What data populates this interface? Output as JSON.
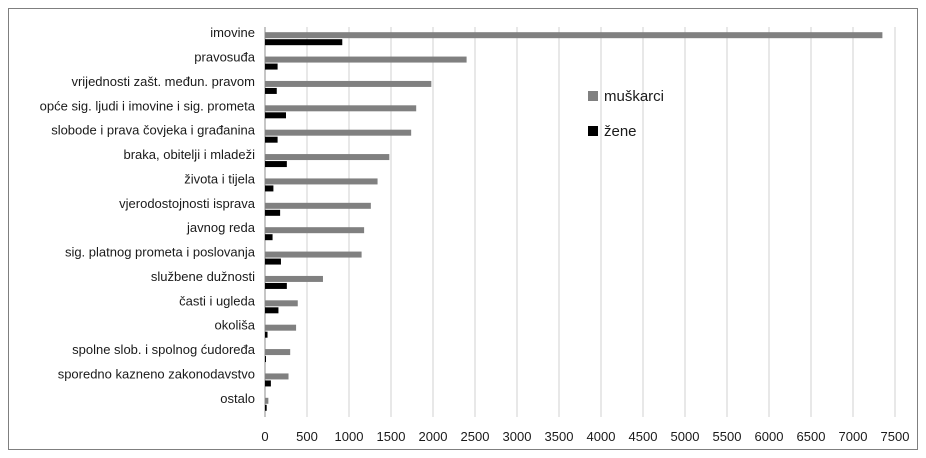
{
  "chart_data": {
    "type": "bar",
    "orientation": "horizontal",
    "categories": [
      "imovine",
      "pravosuđa",
      "vrijednosti zašt. međun. pravom",
      "opće sig. ljudi i imovine i sig. prometa",
      "slobode i prava čovjeka i građanina",
      "braka, obitelji i mladeži",
      "života i tijela",
      "vjerodostojnosti isprava",
      "javnog reda",
      "sig. platnog prometa i poslovanja",
      "službene dužnosti",
      "časti i ugleda",
      "okoliša",
      "spolne slob. i spolnog ćudoređa",
      "sporedno kazneno zakonodavstvo",
      "ostalo"
    ],
    "series": [
      {
        "name": "muškarci",
        "color": "#808080",
        "values": [
          7350,
          2400,
          1980,
          1800,
          1740,
          1480,
          1340,
          1260,
          1180,
          1150,
          690,
          390,
          370,
          300,
          280,
          40
        ]
      },
      {
        "name": "žene",
        "color": "#000000",
        "values": [
          920,
          150,
          140,
          250,
          150,
          260,
          100,
          180,
          90,
          190,
          260,
          160,
          30,
          10,
          70,
          20
        ]
      }
    ],
    "xlim": [
      0,
      7500
    ],
    "xticks": [
      "0",
      "500",
      "1000",
      "1500",
      "2000",
      "2500",
      "3000",
      "3500",
      "4000",
      "4500",
      "5000",
      "5500",
      "6000",
      "6500",
      "7000",
      "7500"
    ],
    "grid": true,
    "legend": "upper-middle"
  }
}
